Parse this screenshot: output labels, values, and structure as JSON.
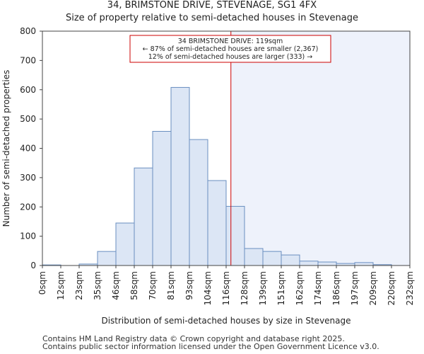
{
  "chart_data": {
    "type": "bar",
    "title": "34, BRIMSTONE DRIVE, STEVENAGE, SG1 4FX",
    "subtitle": "Size of property relative to semi-detached houses in Stevenage",
    "xlabel": "Distribution of semi-detached houses by size in Stevenage",
    "ylabel": "Number of semi-detached properties",
    "ylim": [
      0,
      800
    ],
    "yticks": [
      0,
      100,
      200,
      300,
      400,
      500,
      600,
      700,
      800
    ],
    "xtick_labels": [
      "0sqm",
      "12sqm",
      "23sqm",
      "35sqm",
      "46sqm",
      "58sqm",
      "70sqm",
      "81sqm",
      "93sqm",
      "104sqm",
      "116sqm",
      "128sqm",
      "139sqm",
      "151sqm",
      "162sqm",
      "174sqm",
      "186sqm",
      "197sqm",
      "209sqm",
      "220sqm",
      "232sqm"
    ],
    "values": [
      2,
      0,
      5,
      48,
      145,
      333,
      458,
      608,
      430,
      290,
      202,
      58,
      48,
      36,
      15,
      12,
      7,
      10,
      3,
      0
    ],
    "marker": {
      "value_sqm": 119,
      "bin_position": 10.26
    },
    "annotation": {
      "line1": "34 BRIMSTONE DRIVE: 119sqm",
      "line2": "← 87% of semi-detached houses are smaller (2,367)",
      "line3": "12% of semi-detached houses are larger (333) →"
    },
    "colors": {
      "bar_fill": "#dce6f5",
      "bar_edge": "#6a8fc0",
      "marker": "#cc0000",
      "highlight": "#eef2fb"
    }
  },
  "footer": {
    "line1": "Contains HM Land Registry data © Crown copyright and database right 2025.",
    "line2": "Contains public sector information licensed under the Open Government Licence v3.0."
  }
}
